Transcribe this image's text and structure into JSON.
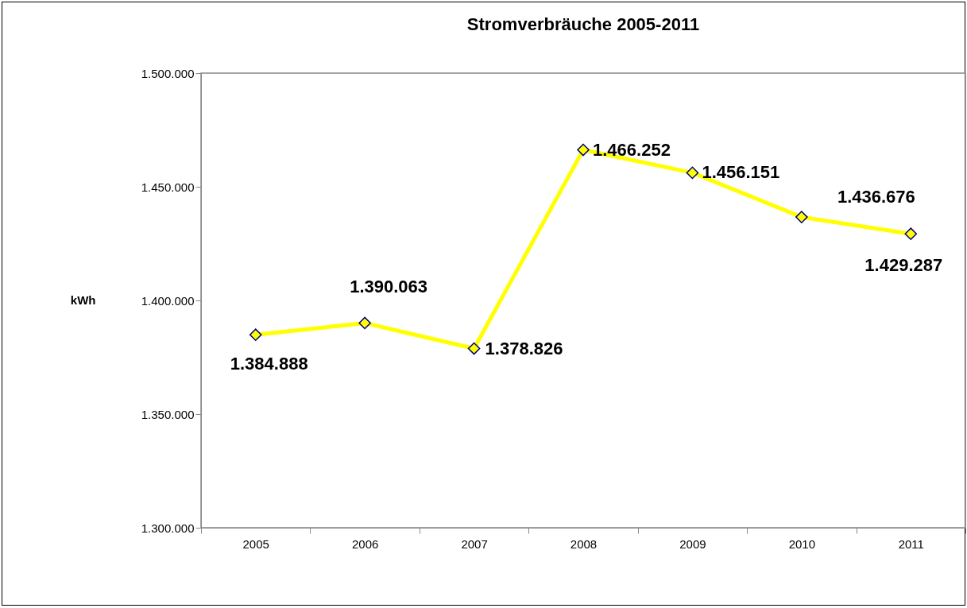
{
  "chart_data": {
    "type": "line",
    "title": "Stromverbräuche 2005-2011",
    "ylabel": "kWh",
    "categories": [
      "2005",
      "2006",
      "2007",
      "2008",
      "2009",
      "2010",
      "2011"
    ],
    "series": [
      {
        "color": "#ffff00",
        "values": [
          1384888,
          1390063,
          1378826,
          1466252,
          1456151,
          1436676,
          1429287
        ],
        "value_labels": [
          "1.384.888",
          "1.390.063",
          "1.378.826",
          "1.466.252",
          "1.456.151",
          "1.436.676",
          "1.429.287"
        ]
      }
    ],
    "ylim": [
      1300000,
      1500000
    ],
    "yticks": [
      {
        "value": 1300000,
        "label": "1.300.000"
      },
      {
        "value": 1350000,
        "label": "1.350.000"
      },
      {
        "value": 1400000,
        "label": "1.400.000"
      },
      {
        "value": 1450000,
        "label": "1.450.000"
      },
      {
        "value": 1500000,
        "label": "1.500.000"
      }
    ],
    "grid": false,
    "marker": "diamond",
    "line_style": "solid"
  }
}
